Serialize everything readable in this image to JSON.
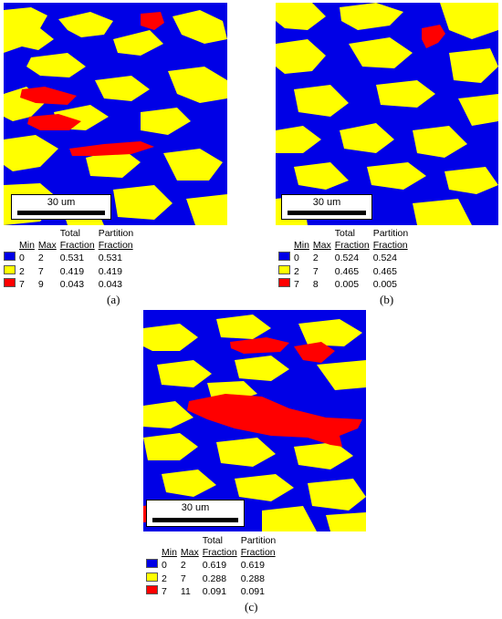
{
  "colors": {
    "blue": "#0000e6",
    "yellow": "#ffff00",
    "red": "#ff0000"
  },
  "panels": {
    "a": {
      "caption": "(a)",
      "scale_label": "30 um",
      "header": {
        "min": "Min",
        "max": "Max",
        "total_1": "Total",
        "total_2": "Fraction",
        "part_1": "Partition",
        "part_2": "Fraction"
      },
      "rows": [
        {
          "color_name": "blue",
          "min": "0",
          "max": "2",
          "total": "0.531",
          "partition": "0.531"
        },
        {
          "color_name": "yellow",
          "min": "2",
          "max": "7",
          "total": "0.419",
          "partition": "0.419"
        },
        {
          "color_name": "red",
          "min": "7",
          "max": "9",
          "total": "0.043",
          "partition": "0.043"
        }
      ]
    },
    "b": {
      "caption": "(b)",
      "scale_label": "30 um",
      "header": {
        "min": "Min",
        "max": "Max",
        "total_1": "Total",
        "total_2": "Fraction",
        "part_1": "Partition",
        "part_2": "Fraction"
      },
      "rows": [
        {
          "color_name": "blue",
          "min": "0",
          "max": "2",
          "total": "0.524",
          "partition": "0.524"
        },
        {
          "color_name": "yellow",
          "min": "2",
          "max": "7",
          "total": "0.465",
          "partition": "0.465"
        },
        {
          "color_name": "red",
          "min": "7",
          "max": "8",
          "total": "0.005",
          "partition": "0.005"
        }
      ]
    },
    "c": {
      "caption": "(c)",
      "scale_label": "30 um",
      "header": {
        "min": "Min",
        "max": "Max",
        "total_1": "Total",
        "total_2": "Fraction",
        "part_1": "Partition",
        "part_2": "Fraction"
      },
      "rows": [
        {
          "color_name": "blue",
          "min": "0",
          "max": "2",
          "total": "0.619",
          "partition": "0.619"
        },
        {
          "color_name": "yellow",
          "min": "2",
          "max": "7",
          "total": "0.288",
          "partition": "0.288"
        },
        {
          "color_name": "red",
          "min": "7",
          "max": "11",
          "total": "0.091",
          "partition": "0.091"
        }
      ]
    }
  }
}
